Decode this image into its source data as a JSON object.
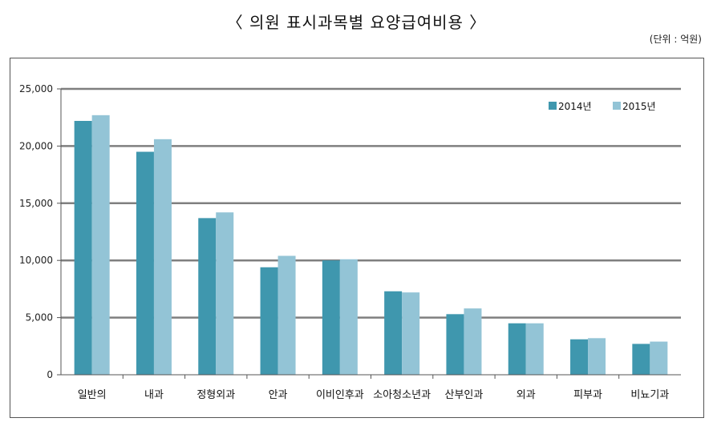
{
  "header": {
    "title": "〈 의원 표시과목별 요양급여비용 〉",
    "unit": "(단위 : 억원)"
  },
  "chart_data": {
    "type": "bar",
    "title": "의원 표시과목별 요양급여비용",
    "xlabel": "",
    "ylabel": "",
    "ylim": [
      0,
      25000
    ],
    "yticks": [
      0,
      5000,
      10000,
      15000,
      20000,
      25000
    ],
    "ytick_labels": [
      "0",
      "5,000",
      "10,000",
      "15,000",
      "20,000",
      "25,000"
    ],
    "grid": true,
    "legend_position": "top-right",
    "categories": [
      "일반의",
      "내과",
      "정형외과",
      "안과",
      "이비인후과",
      "소아청소년과",
      "산부인과",
      "외과",
      "피부과",
      "비뇨기과"
    ],
    "series": [
      {
        "name": "2014년",
        "color": "#3f97ae",
        "values": [
          22200,
          19500,
          13700,
          9400,
          10000,
          7300,
          5300,
          4500,
          3100,
          2700
        ]
      },
      {
        "name": "2015년",
        "color": "#93c4d6",
        "values": [
          22700,
          20600,
          14200,
          10400,
          10100,
          7200,
          5800,
          4500,
          3200,
          2900
        ]
      }
    ]
  }
}
